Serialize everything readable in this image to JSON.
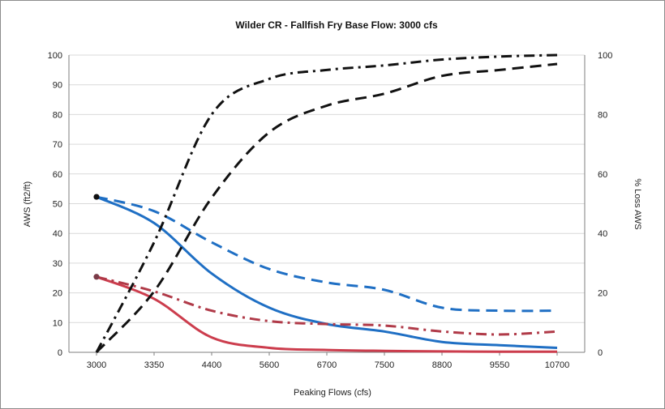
{
  "chart_data": {
    "type": "line",
    "title": "Wilder CR -  Fallfish Fry   Base Flow: 3000 cfs",
    "xlabel": "Peaking Flows (cfs)",
    "ylabel_left": "AWS (ft2/ft)",
    "ylabel_right": "% Loss AWS",
    "categories": [
      "3000",
      "3350",
      "4400",
      "5600",
      "6700",
      "7500",
      "8800",
      "9550",
      "10700"
    ],
    "y_left_ticks": [
      "0",
      "10",
      "20",
      "30",
      "40",
      "50",
      "60",
      "70",
      "80",
      "90",
      "100"
    ],
    "y_right_ticks": [
      "0",
      "20",
      "40",
      "60",
      "80",
      "100"
    ],
    "ylim_left": [
      0,
      100
    ],
    "ylim_right": [
      0,
      100
    ],
    "grid": true,
    "legend": "none",
    "series": [
      {
        "axis": "left",
        "color": "#1f6fc4",
        "style": "solid",
        "marker_first": true,
        "values": [
          52.3,
          43.5,
          26.5,
          15.0,
          9.5,
          7.0,
          3.5,
          2.4,
          1.5
        ]
      },
      {
        "axis": "left",
        "color": "#1f6fc4",
        "style": "dash",
        "values": [
          52.3,
          47.5,
          37.0,
          28.0,
          23.5,
          21.0,
          15.0,
          14.0,
          14.0
        ]
      },
      {
        "axis": "left",
        "color": "#cc3d4d",
        "style": "solid",
        "marker_first": true,
        "values": [
          25.4,
          18.0,
          5.0,
          1.5,
          0.8,
          0.5,
          0.3,
          0.2,
          0.2
        ]
      },
      {
        "axis": "left",
        "color": "#b03a48",
        "style": "dashdot",
        "values": [
          25.4,
          20.5,
          14.0,
          10.5,
          9.5,
          9.0,
          7.0,
          6.0,
          7.0
        ]
      },
      {
        "axis": "right",
        "color": "#111111",
        "style": "dashdot",
        "values": [
          0,
          37.0,
          80.0,
          92.0,
          95.0,
          96.5,
          98.5,
          99.5,
          100.0
        ]
      },
      {
        "axis": "right",
        "color": "#111111",
        "style": "dash",
        "values": [
          0,
          20.5,
          52.0,
          74.0,
          83.0,
          87.0,
          93.0,
          95.0,
          97.0
        ]
      }
    ]
  }
}
